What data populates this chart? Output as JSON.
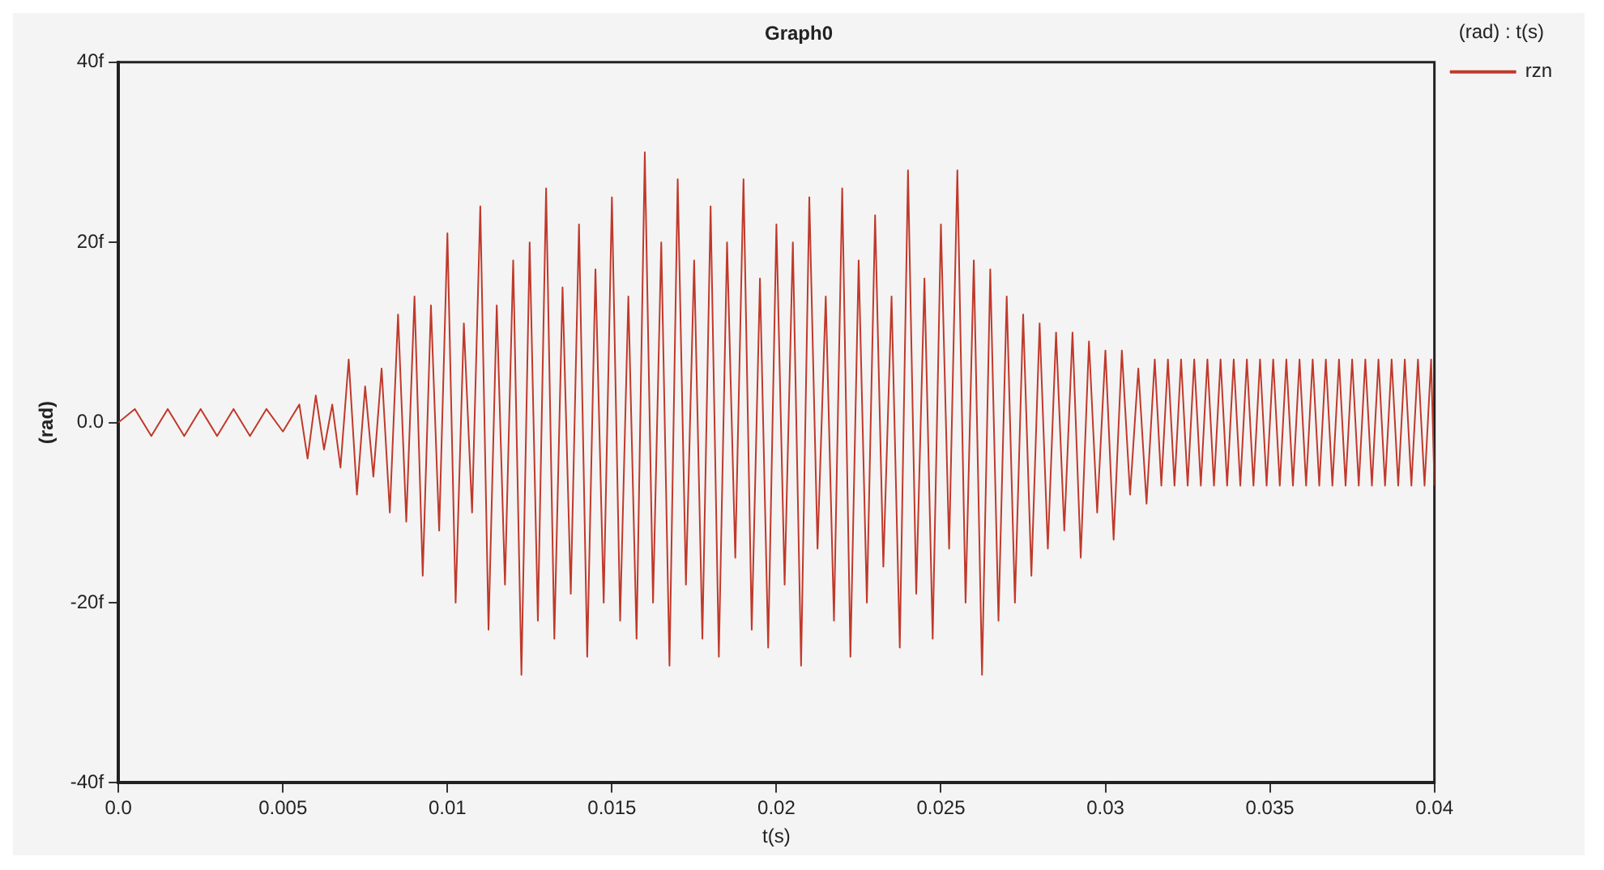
{
  "chart_data": {
    "type": "line",
    "title": "Graph0",
    "xlabel": "t(s)",
    "ylabel": "(rad)",
    "legend_title": "(rad) : t(s)",
    "legend": "top right",
    "grid": false,
    "marker": "none",
    "line_style": "solid",
    "xlim": [
      0,
      0.04
    ],
    "xticks": [
      {
        "value": 0,
        "label": "0.0"
      },
      0.005,
      0.01,
      0.015,
      0.02,
      0.025,
      0.03,
      0.035,
      0.04
    ],
    "ylim": [
      -40,
      40
    ],
    "yticks": [
      {
        "value": -40,
        "label": "-40f"
      },
      {
        "value": -20,
        "label": "-20f"
      },
      {
        "value": 0,
        "label": "0.0"
      },
      {
        "value": 20,
        "label": "20f"
      },
      {
        "value": 40,
        "label": "40f"
      }
    ],
    "series": [
      {
        "name": "rzn",
        "color": "#c0392b",
        "x": [
          0,
          0.0005,
          0.001,
          0.0015,
          0.002,
          0.0025,
          0.003,
          0.0035,
          0.004,
          0.0045,
          0.005,
          0.00525,
          0.0055,
          0.00575,
          0.006,
          0.00625,
          0.0065,
          0.00675,
          0.007,
          0.00725,
          0.0075,
          0.00775,
          0.008,
          0.00825,
          0.0085,
          0.00875,
          0.009,
          0.00925,
          0.0095,
          0.00975,
          0.01,
          0.01025,
          0.0105,
          0.01075,
          0.011,
          0.01125,
          0.0115,
          0.01175,
          0.012,
          0.01225,
          0.0125,
          0.01275,
          0.013,
          0.01325,
          0.0135,
          0.01375,
          0.014,
          0.01425,
          0.0145,
          0.01475,
          0.015,
          0.01525,
          0.0155,
          0.01575,
          0.016,
          0.01625,
          0.0165,
          0.01675,
          0.017,
          0.01725,
          0.0175,
          0.01775,
          0.018,
          0.01825,
          0.0185,
          0.01875,
          0.019,
          0.01925,
          0.0195,
          0.01975,
          0.02,
          0.02025,
          0.0205,
          0.02075,
          0.021,
          0.02125,
          0.0215,
          0.02175,
          0.022,
          0.02225,
          0.0225,
          0.02275,
          0.023,
          0.02325,
          0.0235,
          0.02375,
          0.024,
          0.02425,
          0.0245,
          0.02475,
          0.025,
          0.02525,
          0.0255,
          0.02575,
          0.026,
          0.02625,
          0.0265,
          0.02675,
          0.027,
          0.02725,
          0.0275,
          0.02775,
          0.028,
          0.02825,
          0.0285,
          0.02875,
          0.029,
          0.02925,
          0.0295,
          0.02975,
          0.03,
          0.03025,
          0.0305,
          0.03075,
          0.031,
          0.03125,
          0.0315,
          0.0317,
          0.0319,
          0.0321,
          0.0323,
          0.0325,
          0.0327,
          0.0329,
          0.0331,
          0.0333,
          0.0335,
          0.0337,
          0.0339,
          0.0341,
          0.0343,
          0.0345,
          0.0347,
          0.0349,
          0.0351,
          0.0353,
          0.0355,
          0.0357,
          0.0359,
          0.0361,
          0.0363,
          0.0365,
          0.0367,
          0.0369,
          0.0371,
          0.0373,
          0.0375,
          0.0377,
          0.0379,
          0.0381,
          0.0383,
          0.0385,
          0.0387,
          0.0389,
          0.0391,
          0.0393,
          0.0395,
          0.0397,
          0.0399,
          0.04
        ],
        "values": [
          0,
          1.5,
          -1.5,
          1.5,
          -1.5,
          1.5,
          -1.5,
          1.5,
          -1.5,
          1.5,
          -1,
          0.5,
          2,
          -4,
          3,
          -3,
          2,
          -5,
          7,
          -8,
          4,
          -6,
          6,
          -10,
          12,
          -11,
          14,
          -17,
          13,
          -12,
          21,
          -20,
          11,
          -10,
          24,
          -23,
          13,
          -18,
          18,
          -28,
          20,
          -22,
          26,
          -24,
          15,
          -19,
          22,
          -26,
          17,
          -20,
          25,
          -22,
          14,
          -24,
          30,
          -20,
          20,
          -27,
          27,
          -18,
          18,
          -24,
          24,
          -26,
          20,
          -15,
          27,
          -23,
          16,
          -25,
          22,
          -18,
          20,
          -27,
          25,
          -14,
          14,
          -22,
          26,
          -26,
          18,
          -20,
          23,
          -16,
          14,
          -25,
          28,
          -19,
          16,
          -24,
          22,
          -14,
          28,
          -20,
          18,
          -28,
          17,
          -22,
          14,
          -20,
          12,
          -17,
          11,
          -14,
          10,
          -12,
          10,
          -15,
          9,
          -10,
          8,
          -13,
          8,
          -8,
          6,
          -9,
          7,
          -7,
          7,
          -7,
          7,
          -7,
          7,
          -7,
          7,
          -7,
          7,
          -7,
          7,
          -7,
          7,
          -7,
          7,
          -7,
          7,
          -7,
          7,
          -7,
          7,
          -7,
          7,
          -7,
          7,
          -7,
          7,
          -7,
          7,
          -7,
          7,
          -7,
          7,
          -7,
          7,
          -7,
          7,
          -7,
          7,
          -7,
          7,
          -7
        ]
      }
    ]
  }
}
